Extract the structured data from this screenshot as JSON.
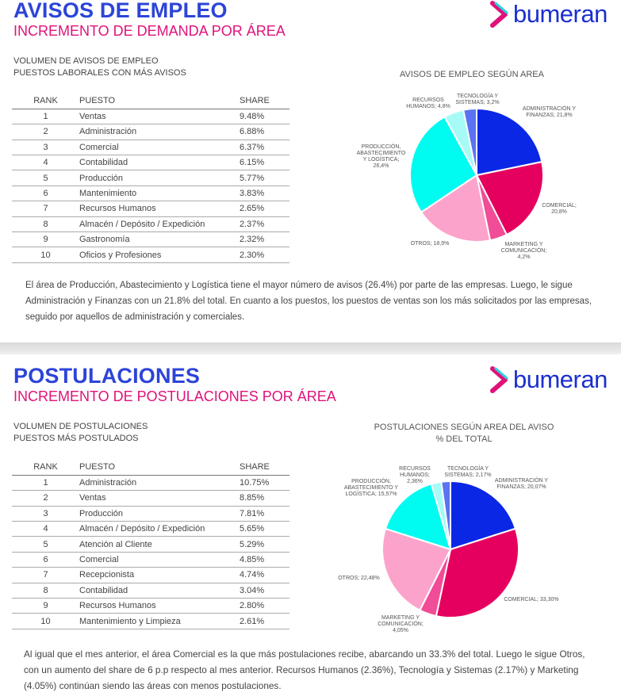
{
  "brand": {
    "name": "bumeran",
    "colors": {
      "blue": "#2c44d8",
      "pink": "#e0127a"
    }
  },
  "section1": {
    "title": "AVISOS DE EMPLEO",
    "subtitle": "INCREMENTO DE DEMANDA POR ÁREA",
    "caption_line1": "VOLUMEN DE AVISOS DE EMPLEO",
    "caption_line2": "PUESTOS LABORALES CON MÁS AVISOS",
    "table": {
      "headers": [
        "RANK",
        "PUESTO",
        "SHARE"
      ],
      "rows": [
        [
          "1",
          "Ventas",
          "9.48%"
        ],
        [
          "2",
          "Administración",
          "6.88%"
        ],
        [
          "3",
          "Comercial",
          "6.37%"
        ],
        [
          "4",
          "Contabilidad",
          "6.15%"
        ],
        [
          "5",
          "Producción",
          "5.77%"
        ],
        [
          "6",
          "Mantenimiento",
          "3.83%"
        ],
        [
          "7",
          "Recursos Humanos",
          "2.65%"
        ],
        [
          "8",
          "Almacén / Depósito / Expedición",
          "2.37%"
        ],
        [
          "9",
          "Gastronomía",
          "2.32%"
        ],
        [
          "10",
          "Oficios y Profesiones",
          "2.30%"
        ]
      ]
    },
    "paragraph": "El área de Producción, Abastecimiento y Logística tiene el mayor número de avisos (26.4%) por parte de las empresas. Luego, le sigue Administración y Finanzas con un 21.8% del total. En cuanto a los puestos, los puestos de ventas son los más solicitados por las empresas, seguido por aquellos de administración y comerciales."
  },
  "section2": {
    "title": "POSTULACIONES",
    "subtitle": "INCREMENTO DE POSTULACIONES POR ÁREA",
    "caption_line1": "VOLUMEN DE POSTULACIONES",
    "caption_line2": "PUESTOS MÁS POSTULADOS",
    "table": {
      "headers": [
        "RANK",
        "PUESTO",
        "SHARE"
      ],
      "rows": [
        [
          "1",
          "Administración",
          "10.75%"
        ],
        [
          "2",
          "Ventas",
          "8.85%"
        ],
        [
          "3",
          "Producción",
          "7.81%"
        ],
        [
          "4",
          "Almacén / Depósito / Expedición",
          "5.65%"
        ],
        [
          "5",
          "Atención al Cliente",
          "5.29%"
        ],
        [
          "6",
          "Comercial",
          "4.85%"
        ],
        [
          "7",
          "Recepcionista",
          "4.74%"
        ],
        [
          "8",
          "Contabilidad",
          "3.04%"
        ],
        [
          "9",
          "Recursos Humanos",
          "2.80%"
        ],
        [
          "10",
          "Mantenimiento y Limpieza",
          "2.61%"
        ]
      ]
    },
    "paragraph": "Al igual que el mes anterior, el área Comercial es la que más postulaciones recibe, abarcando un 33.3% del total. Luego le sigue Otros, con un aumento del share de 6 p.p respecto al mes anterior. Recursos Humanos (2.36%), Tecnología y Sistemas (2.17%) y Marketing (4.05%) continúan siendo las áreas con menos postulaciones."
  },
  "chart_data": [
    {
      "type": "pie",
      "title": "AVISOS DE EMPLEO SEGÚN AREA",
      "subtitle": "",
      "slices": [
        {
          "name": "ADMINISTRACIÓN Y FINANZAS",
          "value": 21.8,
          "label": "ADMINISTRACIÓN Y FINANZAS; 21,8%",
          "color": "#0a27e6"
        },
        {
          "name": "COMERCIAL",
          "value": 20.8,
          "label": "COMERCIAL; 20,8%",
          "color": "#e5005f"
        },
        {
          "name": "MARKETING Y COMUNICACIÓN",
          "value": 4.2,
          "label": "MARKETING Y COMUNICACIÓN; 4,2%",
          "color": "#f04c97"
        },
        {
          "name": "OTROS",
          "value": 18.9,
          "label": "OTROS; 18,9%",
          "color": "#fca3cb"
        },
        {
          "name": "PRODUCCIÓN, ABASTECIMIENTO Y LOGÍSTICA",
          "value": 26.4,
          "label": "PRODUCCIÓN, ABASTECIMIENTO Y LOGÍSTICA; 26,4%",
          "color": "#00fbf0"
        },
        {
          "name": "RECURSOS HUMANOS",
          "value": 4.8,
          "label": "RECURSOS HUMANOS; 4,8%",
          "color": "#a6fbf6"
        },
        {
          "name": "TECNOLOGÍA Y SISTEMAS",
          "value": 3.2,
          "label": "TECNOLOGÍA Y SISTEMAS; 3,2%",
          "color": "#5a73f2"
        }
      ]
    },
    {
      "type": "pie",
      "title": "POSTULACIONES SEGÚN AREA DEL AVISO",
      "subtitle": "% DEL TOTAL",
      "slices": [
        {
          "name": "ADMINISTRACIÓN Y FINANZAS",
          "value": 20.07,
          "label": "ADMINISTRACIÓN Y FINANZAS; 20,07%",
          "color": "#0a27e6"
        },
        {
          "name": "COMERCIAL",
          "value": 33.3,
          "label": "COMERCIAL; 33,30%",
          "color": "#e5005f"
        },
        {
          "name": "MARKETING Y COMUNICACIÓN",
          "value": 4.05,
          "label": "MARKETING Y COMUNICACIÓN; 4,05%",
          "color": "#f04c97"
        },
        {
          "name": "OTROS",
          "value": 22.48,
          "label": "OTROS; 22,48%",
          "color": "#fca3cb"
        },
        {
          "name": "PRODUCCIÓN, ABASTECIMIENTO Y LOGÍSTICA",
          "value": 15.57,
          "label": "PRODUCCIÓN, ABASTECIMIENTO Y LOGÍSTICA; 15,57%",
          "color": "#00fbf0"
        },
        {
          "name": "RECURSOS HUMANOS",
          "value": 2.36,
          "label": "RECURSOS HUMANOS; 2,36%",
          "color": "#a6fbf6"
        },
        {
          "name": "TECNOLOGÍA Y SISTEMAS",
          "value": 2.17,
          "label": "TECNOLOGÍA Y SISTEMAS; 2,17%",
          "color": "#5a73f2"
        }
      ]
    }
  ]
}
